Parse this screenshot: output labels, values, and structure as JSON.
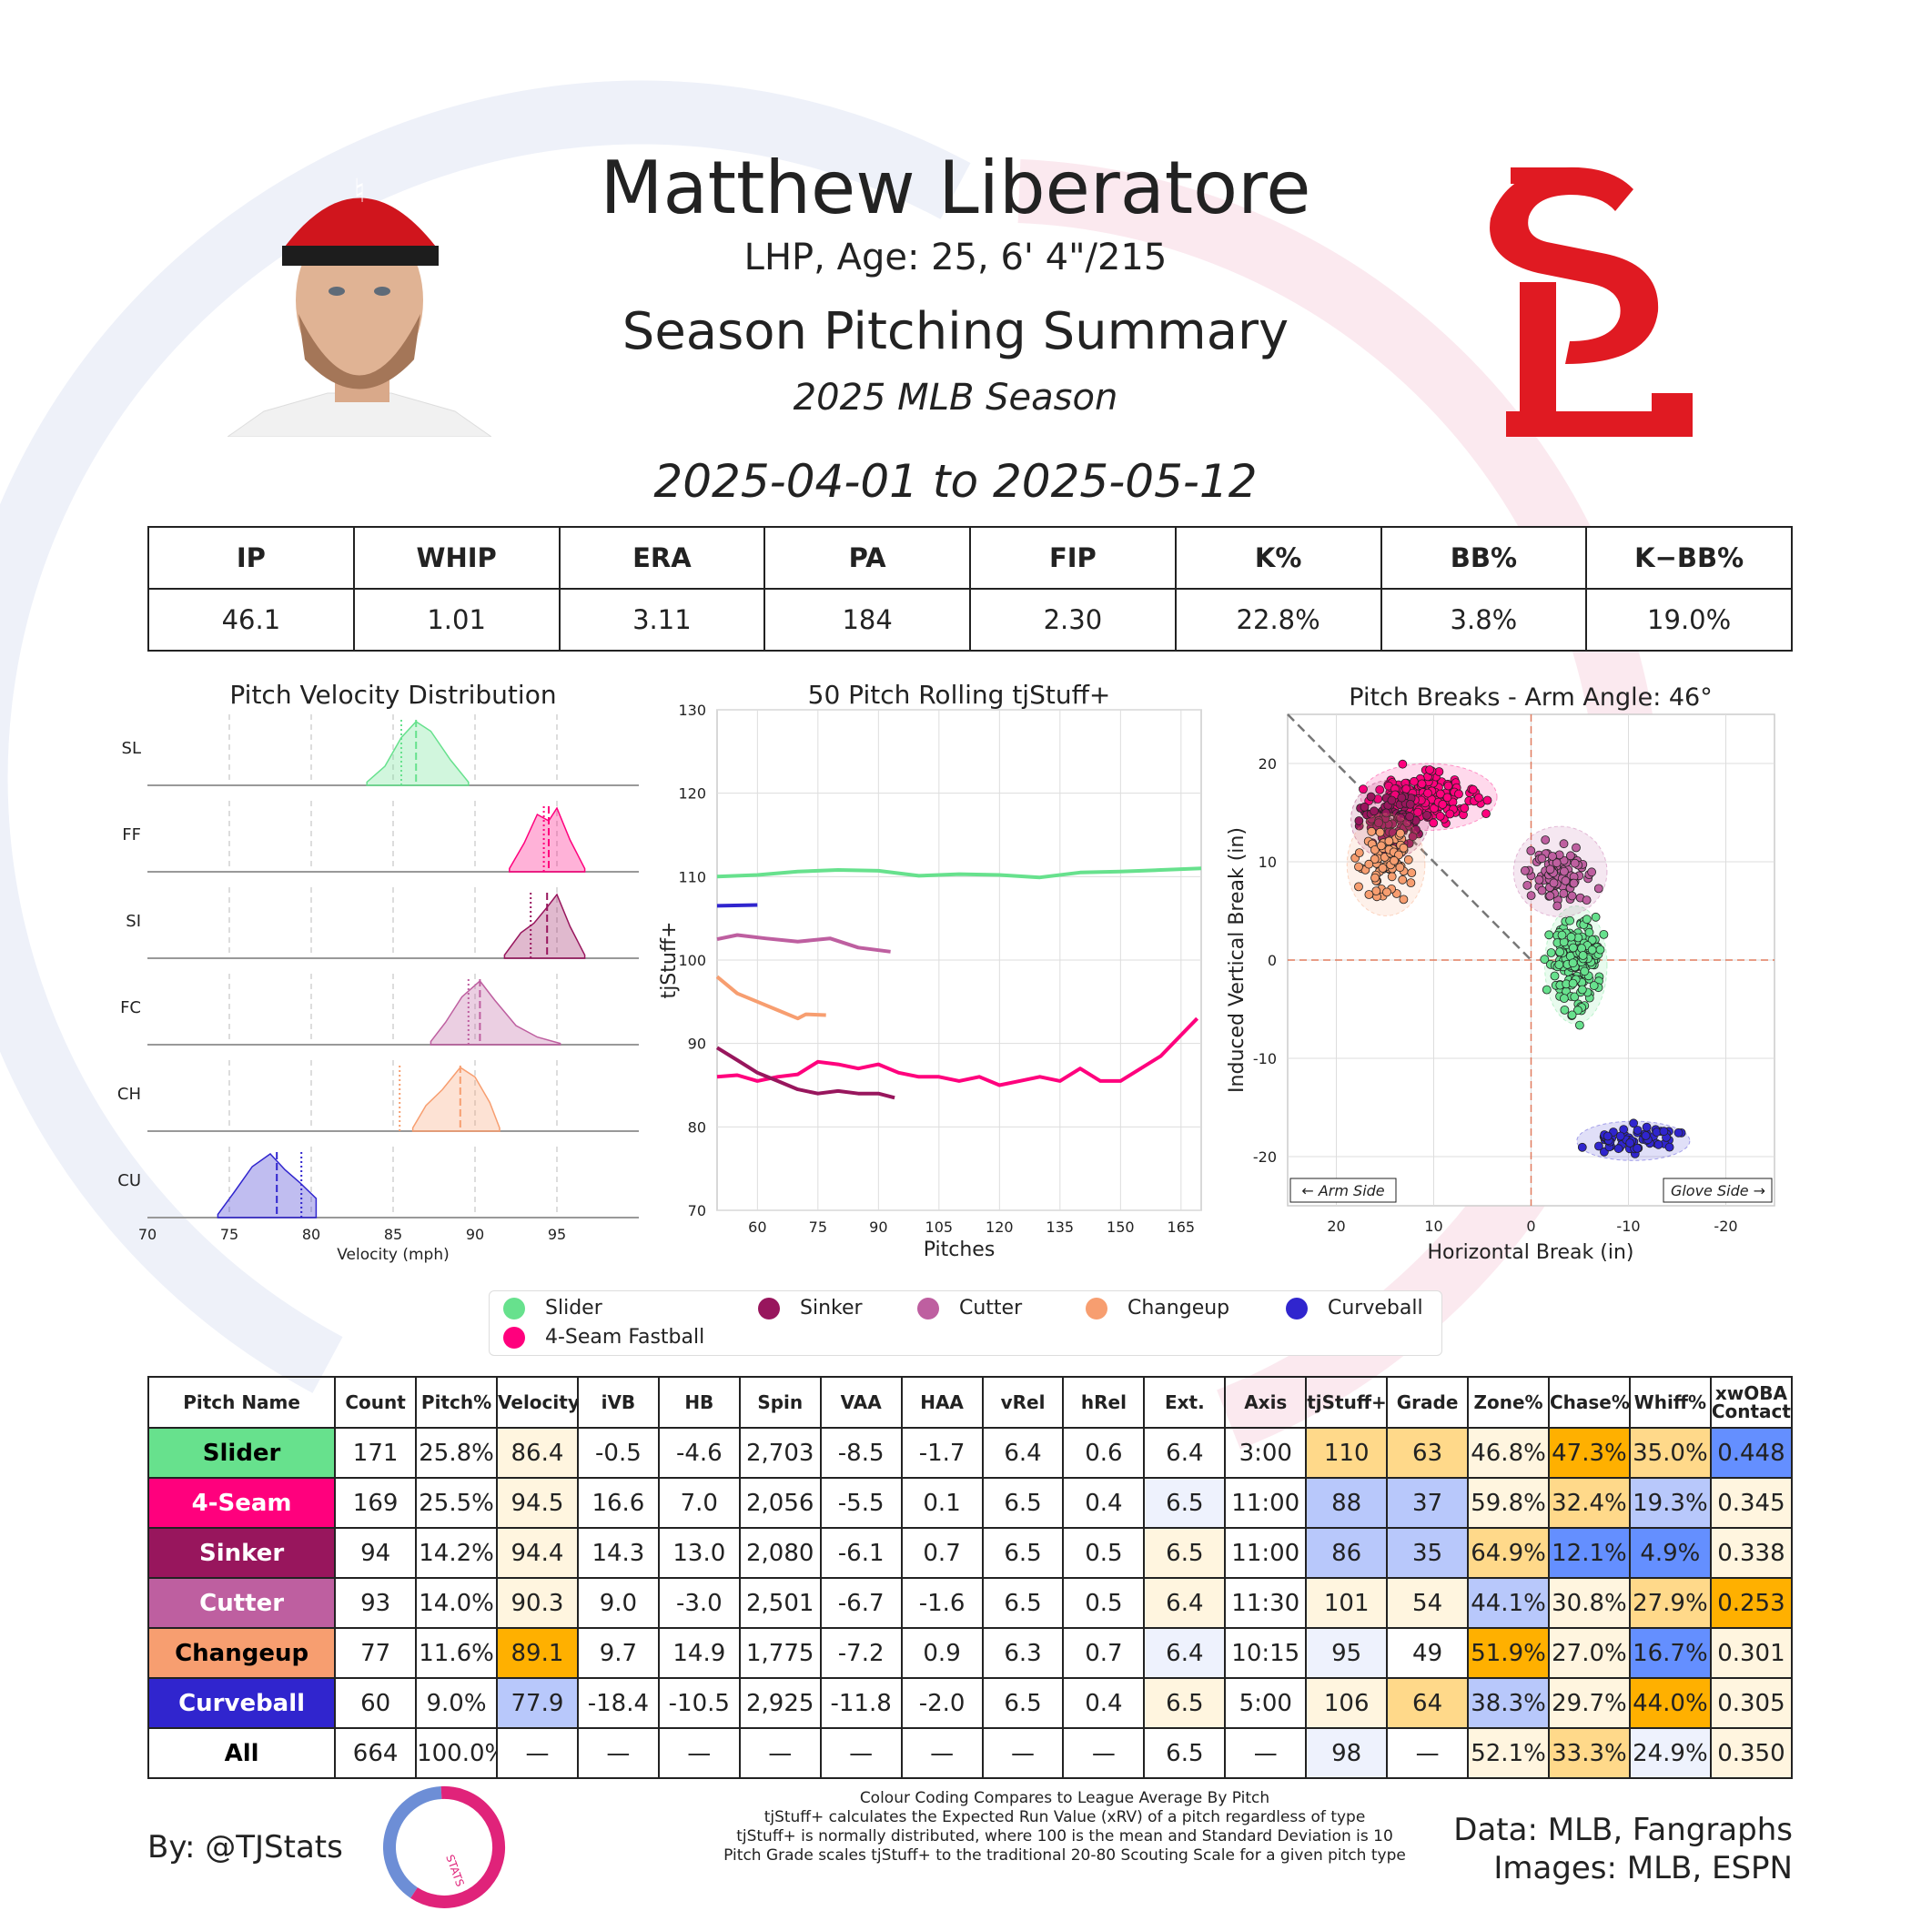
{
  "header": {
    "player_name": "Matthew Liberatore",
    "bio": "LHP, Age: 25, 6' 4\"/215",
    "summary_title": "Season Pitching Summary",
    "season": "2025 MLB Season",
    "date_range": "2025-04-01 to 2025-05-12"
  },
  "stat_line": {
    "headers": [
      "IP",
      "WHIP",
      "ERA",
      "PA",
      "FIP",
      "K%",
      "BB%",
      "K−BB%"
    ],
    "values": [
      "46.1",
      "1.01",
      "3.11",
      "184",
      "2.30",
      "22.8%",
      "3.8%",
      "19.0%"
    ]
  },
  "colors": {
    "slider": "#67e18d",
    "four_seam": "#ff007d",
    "sinker": "#98165d",
    "cutter": "#be5fa0",
    "changeup": "#f79e70",
    "curveball": "#3025ce",
    "team_red": "#e01a22",
    "heat_low_strong": "#648fff",
    "heat_low": "#b8c8fb",
    "heat_low_light": "#eef2fd",
    "heat_neutral": "#ffffff",
    "heat_high_light": "#fff5df",
    "heat_high": "#ffd98a",
    "heat_high_strong": "#ffb000"
  },
  "chart_data": [
    {
      "type": "area",
      "title": "Pitch Velocity Distribution",
      "xlabel": "Velocity (mph)",
      "xlim": [
        70,
        100
      ],
      "xticks": [
        70,
        75,
        80,
        85,
        90,
        95
      ],
      "series": [
        {
          "name": "SL",
          "color_key": "slider",
          "mean": 86.4,
          "league_mean": 85.5,
          "x": [
            83.4,
            84.5,
            85.5,
            86.4,
            87.3,
            88.5,
            89.6
          ],
          "density": [
            0.05,
            0.3,
            0.75,
            1.0,
            0.85,
            0.4,
            0.05
          ]
        },
        {
          "name": "FF",
          "color_key": "four_seam",
          "mean": 94.5,
          "league_mean": 94.2,
          "x": [
            92.1,
            93.0,
            93.8,
            94.5,
            95.0,
            95.8,
            96.7
          ],
          "density": [
            0.05,
            0.45,
            0.9,
            0.8,
            1.0,
            0.5,
            0.05
          ]
        },
        {
          "name": "SI",
          "color_key": "sinker",
          "mean": 94.4,
          "league_mean": 93.4,
          "x": [
            91.8,
            92.8,
            93.6,
            94.4,
            95.0,
            95.8,
            96.7
          ],
          "density": [
            0.05,
            0.4,
            0.55,
            0.8,
            1.0,
            0.5,
            0.05
          ]
        },
        {
          "name": "FC",
          "color_key": "cutter",
          "mean": 90.3,
          "league_mean": 89.6,
          "x": [
            87.3,
            88.2,
            89.2,
            90.3,
            91.2,
            92.5,
            93.8,
            95.2
          ],
          "density": [
            0.05,
            0.35,
            0.75,
            1.0,
            0.7,
            0.3,
            0.12,
            0.02
          ]
        },
        {
          "name": "CH",
          "color_key": "changeup",
          "mean": 89.1,
          "league_mean": 85.4,
          "x": [
            86.2,
            87.0,
            88.0,
            89.1,
            90.0,
            90.9,
            91.5
          ],
          "density": [
            0.05,
            0.4,
            0.65,
            1.0,
            0.85,
            0.45,
            0.05
          ]
        },
        {
          "name": "CU",
          "color_key": "curveball",
          "mean": 77.9,
          "league_mean": 79.4,
          "x": [
            74.3,
            75.3,
            76.4,
            77.5,
            78.4,
            79.3,
            80.3
          ],
          "density": [
            0.05,
            0.4,
            0.8,
            1.0,
            0.75,
            0.55,
            0.3
          ]
        }
      ]
    },
    {
      "type": "line",
      "title": "50 Pitch Rolling tjStuff+",
      "xlabel": "Pitches",
      "ylabel": "tjStuff+",
      "xlim": [
        50,
        170
      ],
      "ylim": [
        70,
        130
      ],
      "xticks": [
        60,
        75,
        90,
        105,
        120,
        135,
        150,
        165
      ],
      "yticks": [
        70,
        80,
        90,
        100,
        110,
        120,
        130
      ],
      "series": [
        {
          "name": "Slider",
          "color_key": "slider",
          "x": [
            50,
            60,
            70,
            80,
            90,
            100,
            110,
            120,
            130,
            140,
            150,
            160,
            170
          ],
          "y": [
            110.0,
            110.2,
            110.6,
            110.8,
            110.7,
            110.1,
            110.3,
            110.2,
            109.9,
            110.5,
            110.6,
            110.8,
            111.0
          ]
        },
        {
          "name": "Curveball",
          "color_key": "curveball",
          "x": [
            50,
            60
          ],
          "y": [
            106.5,
            106.6
          ]
        },
        {
          "name": "Cutter",
          "color_key": "cutter",
          "x": [
            50,
            55,
            62,
            70,
            78,
            85,
            93
          ],
          "y": [
            102.5,
            103.0,
            102.6,
            102.2,
            102.6,
            101.5,
            101.0
          ]
        },
        {
          "name": "Changeup",
          "color_key": "changeup",
          "x": [
            50,
            55,
            60,
            65,
            70,
            72,
            77
          ],
          "y": [
            98.0,
            96.0,
            95.0,
            94.0,
            93.0,
            93.5,
            93.4
          ]
        },
        {
          "name": "4-Seam Fastball",
          "color_key": "four_seam",
          "x": [
            50,
            55,
            60,
            65,
            70,
            75,
            80,
            85,
            90,
            95,
            100,
            105,
            110,
            115,
            120,
            125,
            130,
            135,
            140,
            145,
            150,
            155,
            160,
            165,
            169
          ],
          "y": [
            86.0,
            86.2,
            85.5,
            86.0,
            86.3,
            87.8,
            87.5,
            87.0,
            87.5,
            86.5,
            86.0,
            86.0,
            85.5,
            86.0,
            85.0,
            85.5,
            86.0,
            85.5,
            87.0,
            85.5,
            85.5,
            87.0,
            88.5,
            91.0,
            93.0
          ]
        },
        {
          "name": "Sinker",
          "color_key": "sinker",
          "x": [
            50,
            55,
            60,
            65,
            70,
            75,
            80,
            85,
            90,
            94
          ],
          "y": [
            89.5,
            88.0,
            86.5,
            85.5,
            84.5,
            84.0,
            84.3,
            84.0,
            84.0,
            83.5
          ]
        }
      ]
    },
    {
      "type": "scatter",
      "title": "Pitch Breaks - Arm Angle: 46°",
      "xlabel": "Horizontal Break (in)",
      "ylabel": "Induced Vertical Break (in)",
      "xlim": [
        25,
        -25
      ],
      "ylim": [
        -25,
        25
      ],
      "xticks": [
        20,
        10,
        0,
        -10,
        -20
      ],
      "ytick_labels": [
        "20",
        "10",
        "0",
        "-10",
        "-20"
      ],
      "yticks": [
        20,
        10,
        0,
        -10,
        -20
      ],
      "annotations": [
        "← Arm Side",
        "Glove Side →"
      ],
      "series": [
        {
          "name": "Slider",
          "color_key": "slider",
          "center": [
            -4.6,
            -0.5
          ],
          "spread": [
            1.6,
            3.0
          ],
          "n": 171
        },
        {
          "name": "4-Seam Fastball",
          "color_key": "four_seam",
          "center": [
            10.5,
            16.6
          ],
          "spread": [
            3.5,
            1.7
          ],
          "n": 169
        },
        {
          "name": "Sinker",
          "color_key": "sinker",
          "center": [
            14.5,
            14.3
          ],
          "spread": [
            2.0,
            2.0
          ],
          "n": 94
        },
        {
          "name": "Cutter",
          "color_key": "cutter",
          "center": [
            -3.0,
            9.0
          ],
          "spread": [
            2.4,
            2.3
          ],
          "n": 93
        },
        {
          "name": "Changeup",
          "color_key": "changeup",
          "center": [
            14.9,
            9.7
          ],
          "spread": [
            2.0,
            2.6
          ],
          "n": 77
        },
        {
          "name": "Curveball",
          "color_key": "curveball",
          "center": [
            -10.5,
            -18.4
          ],
          "spread": [
            2.9,
            1.0
          ],
          "n": 60
        }
      ]
    }
  ],
  "legend": [
    {
      "label": "Slider",
      "color_key": "slider"
    },
    {
      "label": "Sinker",
      "color_key": "sinker"
    },
    {
      "label": "Cutter",
      "color_key": "cutter"
    },
    {
      "label": "Changeup",
      "color_key": "changeup"
    },
    {
      "label": "Curveball",
      "color_key": "curveball"
    },
    {
      "label": "4-Seam Fastball",
      "color_key": "four_seam"
    }
  ],
  "pitch_table": {
    "headers": [
      "Pitch Name",
      "Count",
      "Pitch%",
      "Velocity",
      "iVB",
      "HB",
      "Spin",
      "VAA",
      "HAA",
      "vRel",
      "hRel",
      "Ext.",
      "Axis",
      "tjStuff+",
      "Grade",
      "Zone%",
      "Chase%",
      "Whiff%",
      "xwOBA Contact"
    ],
    "rows": [
      {
        "name": "Slider",
        "name_bg": "slider",
        "name_fg": "#000000",
        "cells": [
          "171",
          "25.8%",
          "86.4",
          "-0.5",
          "-4.6",
          "2,703",
          "-8.5",
          "-1.7",
          "6.4",
          "0.6",
          "6.4",
          "3:00",
          "110",
          "63",
          "46.8%",
          "47.3%",
          "35.0%",
          "0.448"
        ],
        "bg": [
          "",
          "",
          "heat_high_light",
          "",
          "",
          "",
          "",
          "",
          "",
          "",
          "",
          "",
          "heat_high",
          "heat_high",
          "heat_high_light",
          "heat_high_strong",
          "heat_high",
          "heat_low_strong"
        ]
      },
      {
        "name": "4-Seam",
        "name_bg": "four_seam",
        "name_fg": "#ffffff",
        "cells": [
          "169",
          "25.5%",
          "94.5",
          "16.6",
          "7.0",
          "2,056",
          "-5.5",
          "0.1",
          "6.5",
          "0.4",
          "6.5",
          "11:00",
          "88",
          "37",
          "59.8%",
          "32.4%",
          "19.3%",
          "0.345"
        ],
        "bg": [
          "",
          "",
          "heat_high_light",
          "",
          "",
          "",
          "",
          "",
          "",
          "",
          "heat_low_light",
          "",
          "heat_low",
          "heat_low",
          "heat_high_light",
          "heat_high",
          "heat_low",
          "heat_high_light"
        ]
      },
      {
        "name": "Sinker",
        "name_bg": "sinker",
        "name_fg": "#ffffff",
        "cells": [
          "94",
          "14.2%",
          "94.4",
          "14.3",
          "13.0",
          "2,080",
          "-6.1",
          "0.7",
          "6.5",
          "0.5",
          "6.5",
          "11:00",
          "86",
          "35",
          "64.9%",
          "12.1%",
          "4.9%",
          "0.338"
        ],
        "bg": [
          "",
          "",
          "heat_high_light",
          "",
          "",
          "",
          "",
          "",
          "",
          "",
          "heat_high_light",
          "",
          "heat_low",
          "heat_low",
          "heat_high",
          "heat_low_strong",
          "heat_low_strong",
          "heat_high_light"
        ]
      },
      {
        "name": "Cutter",
        "name_bg": "cutter",
        "name_fg": "#ffffff",
        "cells": [
          "93",
          "14.0%",
          "90.3",
          "9.0",
          "-3.0",
          "2,501",
          "-6.7",
          "-1.6",
          "6.5",
          "0.5",
          "6.4",
          "11:30",
          "101",
          "54",
          "44.1%",
          "30.8%",
          "27.9%",
          "0.253"
        ],
        "bg": [
          "",
          "",
          "heat_high_light",
          "",
          "",
          "",
          "",
          "",
          "",
          "",
          "heat_high_light",
          "",
          "heat_high_light",
          "heat_high_light",
          "heat_low",
          "heat_high_light",
          "heat_high",
          "heat_high_strong"
        ]
      },
      {
        "name": "Changeup",
        "name_bg": "changeup",
        "name_fg": "#000000",
        "cells": [
          "77",
          "11.6%",
          "89.1",
          "9.7",
          "14.9",
          "1,775",
          "-7.2",
          "0.9",
          "6.3",
          "0.7",
          "6.4",
          "10:15",
          "95",
          "49",
          "51.9%",
          "27.0%",
          "16.7%",
          "0.301"
        ],
        "bg": [
          "",
          "",
          "heat_high_strong",
          "",
          "",
          "",
          "",
          "",
          "",
          "",
          "heat_low_light",
          "",
          "heat_low_light",
          "",
          "heat_high_strong",
          "heat_high_light",
          "heat_low_strong",
          "heat_high_light"
        ]
      },
      {
        "name": "Curveball",
        "name_bg": "curveball",
        "name_fg": "#ffffff",
        "cells": [
          "60",
          "9.0%",
          "77.9",
          "-18.4",
          "-10.5",
          "2,925",
          "-11.8",
          "-2.0",
          "6.5",
          "0.4",
          "6.5",
          "5:00",
          "106",
          "64",
          "38.3%",
          "29.7%",
          "44.0%",
          "0.305"
        ],
        "bg": [
          "",
          "",
          "heat_low",
          "",
          "",
          "",
          "",
          "",
          "",
          "",
          "heat_high_light",
          "",
          "heat_high_light",
          "heat_high",
          "heat_low",
          "heat_high_light",
          "heat_high_strong",
          "heat_high_light"
        ]
      },
      {
        "name": "All",
        "name_bg": "heat_neutral",
        "name_fg": "#000000",
        "cells": [
          "664",
          "100.0%",
          "—",
          "—",
          "—",
          "—",
          "—",
          "—",
          "—",
          "—",
          "6.5",
          "—",
          "98",
          "—",
          "52.1%",
          "33.3%",
          "24.9%",
          "0.350"
        ],
        "bg": [
          "",
          "",
          "",
          "",
          "",
          "",
          "",
          "",
          "",
          "",
          "",
          "",
          "heat_low_light",
          "",
          "heat_high_light",
          "heat_high",
          "heat_low_light",
          "heat_high_light"
        ]
      }
    ]
  },
  "footer": {
    "byline": "By: @TJStats",
    "logo_text": "STATS",
    "notes": [
      "Colour Coding Compares to League Average By Pitch",
      "tjStuff+ calculates the Expected Run Value (xRV) of a pitch regardless of type",
      "tjStuff+ is normally distributed, where 100 is the mean and Standard Deviation is 10",
      "Pitch Grade scales tjStuff+ to the traditional 20-80 Scouting Scale for a given pitch type"
    ],
    "data_credit": "Data: MLB, Fangraphs",
    "image_credit": "Images: MLB, ESPN"
  }
}
